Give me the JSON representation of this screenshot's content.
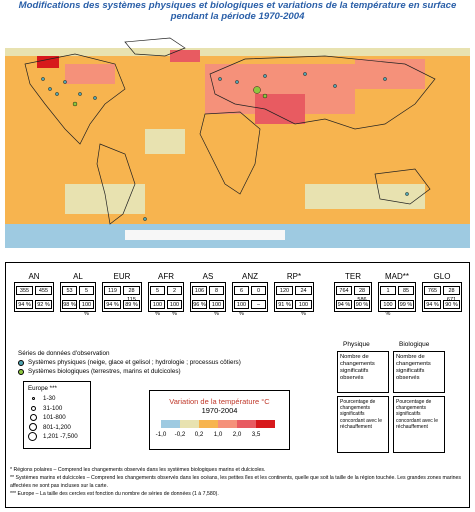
{
  "title": "Modifications des systèmes physiques et biologiques et variations de la température en surface pendant la période 1970-2004",
  "regions": [
    {
      "label": "AN",
      "v1": "355",
      "v2": "455",
      "p1": "94 %",
      "p2": "92 %",
      "total": ""
    },
    {
      "label": "AL",
      "v1": "53",
      "v2": "5",
      "p1": "98 %",
      "p2": "100 %",
      "total": ""
    },
    {
      "label": "EUR",
      "v1": "119",
      "v2": "28 115",
      "p1": "94 %",
      "p2": "89 %",
      "total": "28 115"
    },
    {
      "label": "AFR",
      "v1": "5",
      "v2": "2",
      "p1": "100 %",
      "p2": "100 %",
      "total": ""
    },
    {
      "label": "AS",
      "v1": "106",
      "v2": "8",
      "p1": "96 %",
      "p2": "100 %",
      "total": ""
    },
    {
      "label": "ANZ",
      "v1": "6",
      "v2": "0",
      "p1": "100 %",
      "p2": "–",
      "total": ""
    },
    {
      "label": "RP*",
      "v1": "120",
      "v2": "24",
      "p1": "91 %",
      "p2": "100 %",
      "total": ""
    },
    {
      "label": "TER",
      "v1": "764",
      "v2": "28 586",
      "p1": "94 %",
      "p2": "90 %",
      "total": "28 586"
    },
    {
      "label": "MAD**",
      "v1": "1",
      "v2": "85",
      "p1": "100 %",
      "p2": "99 %",
      "total": ""
    },
    {
      "label": "GLO",
      "v1": "765",
      "v2": "28 671",
      "p1": "94 %",
      "p2": "90 %",
      "total": "28 671"
    }
  ],
  "series_title": "Séries de données d'observation",
  "series_phys": "Systèmes physiques (neige, glace et gelisol ; hydrologie ; processus côtiers)",
  "series_bio": "Systèmes biologiques (terrestres, marins et dulcicoles)",
  "europe": {
    "title": "Europe ***",
    "rows": [
      "1-30",
      "31-100",
      "101-800",
      "801-1,200",
      "1,201 -7,500"
    ]
  },
  "temp": {
    "title": "Variation de la température °C",
    "period": "1970-2004",
    "ticks": [
      "-1,0",
      "-0,2",
      "0,2",
      "1,0",
      "2,0",
      "3,5"
    ],
    "colors": [
      "#9ecae1",
      "#e8e2b0",
      "#f7b44f",
      "#f5917a",
      "#e85b61",
      "#d7191c"
    ]
  },
  "key": {
    "physique": "Physique",
    "biologique": "Biologique",
    "count_text": "Nombre de changements significatifs observés",
    "pct_text": "Pourcentage de changements significatifs concordant avec le réchauffement"
  },
  "footnotes": [
    "* Régions polaires – Comprend les changements observés dans les systèmes biologiques marins et dulcicoles.",
    "** Systèmes marins et dulcicoles – Comprend les changements observés dans les océans, les petites îles et les continents, quelle que soit la taille de la région touchée. Les grandes zones marines affectées ne sont pas incluses sur la carte.",
    "*** Europe – La taille des cercles est fonction du nombre de séries de données (1 à 7,580)."
  ]
}
